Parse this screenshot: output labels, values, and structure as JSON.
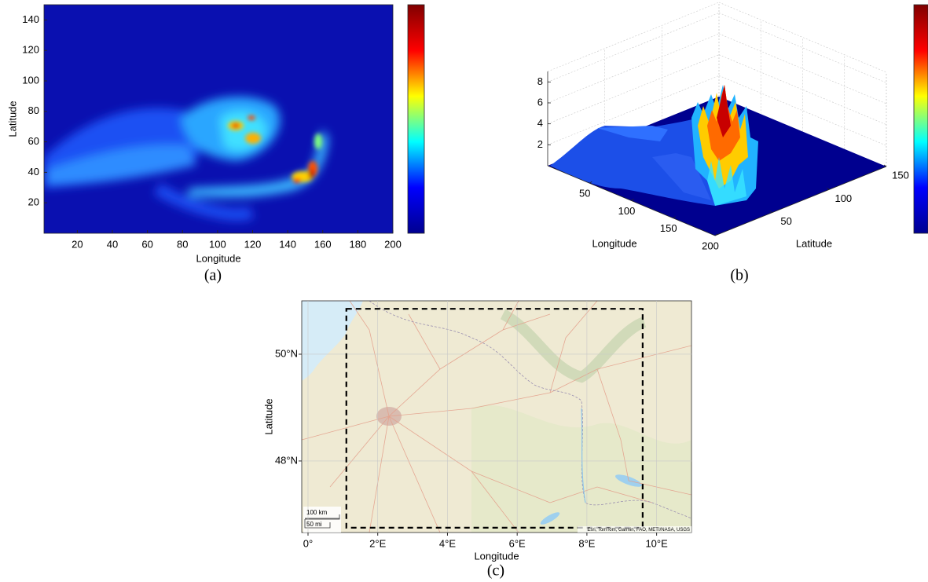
{
  "chart_data": [
    {
      "type": "heatmap",
      "caption": "(a)",
      "xlabel": "Longitude",
      "ylabel": "Latitude",
      "xlim": [
        1,
        200
      ],
      "ylim": [
        0,
        150
      ],
      "xticks": [
        20,
        40,
        60,
        80,
        100,
        120,
        140,
        160,
        180,
        200
      ],
      "yticks": [
        20,
        40,
        60,
        80,
        100,
        120,
        140
      ],
      "colormap": "jet"
    },
    {
      "type": "surface",
      "caption": "(b)",
      "xlabel": "Longitude",
      "ylabel": "Latitude",
      "xlim": [
        0,
        200
      ],
      "ylim": [
        0,
        150
      ],
      "zlim": [
        0,
        9
      ],
      "xticks": [
        50,
        100,
        150,
        200
      ],
      "yticks": [
        50,
        100,
        150
      ],
      "zticks": [
        2,
        4,
        6,
        8
      ],
      "grid": true,
      "colormap": "jet"
    },
    {
      "type": "map",
      "caption": "(c)",
      "xlabel": "Longitude",
      "ylabel": "Latitude",
      "xlim": [
        -0.18,
        11
      ],
      "ylim": [
        46.66,
        51.0
      ],
      "xticks": [
        {
          "value": 0,
          "label": "0°"
        },
        {
          "value": 2,
          "label": "2°E"
        },
        {
          "value": 4,
          "label": "4°E"
        },
        {
          "value": 6,
          "label": "6°E"
        },
        {
          "value": 8,
          "label": "8°E"
        },
        {
          "value": 10,
          "label": "10°E"
        }
      ],
      "yticks": [
        {
          "value": 48,
          "label": "48°N"
        },
        {
          "value": 50,
          "label": "50°N"
        }
      ],
      "grid": true,
      "scale_bar": [
        "100 km",
        "50 mi"
      ],
      "attribution": "Esri, TomTom, Garmin, FAO, METI/NASA, USGS",
      "region": {
        "lon": [
          1.1,
          9.6
        ],
        "lat": [
          46.75,
          50.85
        ]
      }
    }
  ]
}
